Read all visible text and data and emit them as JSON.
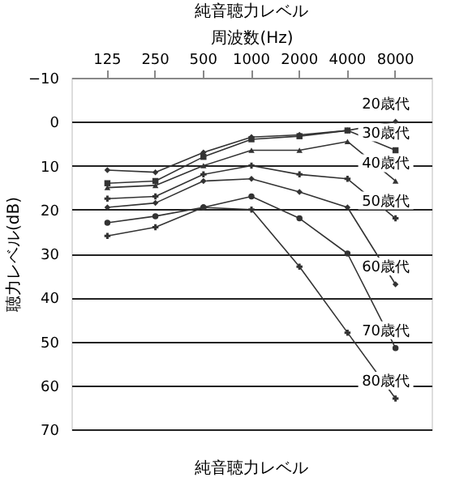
{
  "chart_data": {
    "type": "line",
    "title": "純音聴力レベル",
    "xlabel": "周波数(Hz)",
    "ylabel": "聴力レベル(dB)",
    "categories": [
      "125",
      "250",
      "500",
      "1000",
      "2000",
      "4000",
      "8000"
    ],
    "ylim": [
      70,
      -10
    ],
    "yticks": [
      -10,
      0,
      10,
      20,
      30,
      40,
      50,
      60,
      70
    ],
    "grid": "y",
    "legend": false,
    "series": [
      {
        "name": "20歳代",
        "color": "#333333",
        "marker": "diamond",
        "values": [
          11,
          11.5,
          7,
          3.5,
          3,
          2,
          0
        ]
      },
      {
        "name": "30歳代",
        "color": "#333333",
        "marker": "square",
        "values": [
          14,
          13.5,
          8,
          4,
          3.3,
          2,
          6.5
        ]
      },
      {
        "name": "40歳代",
        "color": "#333333",
        "marker": "triangle",
        "values": [
          15,
          14.5,
          10,
          6.5,
          6.5,
          4.5,
          13.5
        ]
      },
      {
        "name": "50歳代",
        "color": "#333333",
        "marker": "cross",
        "values": [
          17.5,
          17,
          12,
          10,
          12,
          13,
          22
        ]
      },
      {
        "name": "60歳代",
        "color": "#333333",
        "marker": "diamond",
        "values": [
          19.5,
          18.5,
          13.5,
          13,
          16,
          19.5,
          37
        ]
      },
      {
        "name": "70歳代",
        "color": "#333333",
        "marker": "circle",
        "values": [
          23,
          21.5,
          19.5,
          17,
          22,
          30,
          51.5
        ]
      },
      {
        "name": "80歳代",
        "color": "#333333",
        "marker": "cross",
        "values": [
          26,
          24,
          19.5,
          20,
          33,
          48,
          63
        ]
      }
    ],
    "annotations": [
      "純音聴力レベル"
    ]
  }
}
